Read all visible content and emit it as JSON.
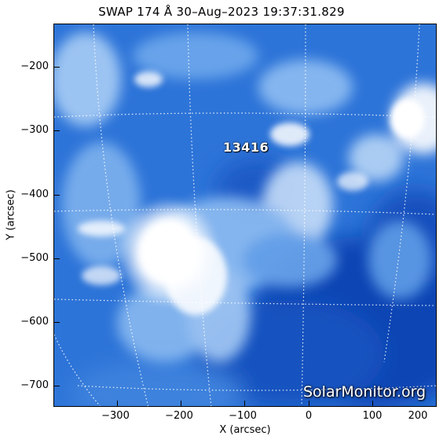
{
  "title": "SWAP 174 Å 30–Aug–2023 19:37:31.829",
  "x_axis": {
    "label": "X (arcsec)",
    "range": [
      -395,
      205
    ],
    "ticks": [
      "−300",
      "−200",
      "−100",
      "0",
      "100",
      "200"
    ],
    "tick_values": [
      -300,
      -200,
      -100,
      0,
      100,
      200
    ]
  },
  "y_axis": {
    "label": "Y (arcsec)",
    "range": [
      -735,
      -135
    ],
    "ticks": [
      "−200",
      "−300",
      "−400",
      "−500",
      "−600",
      "−700"
    ],
    "tick_values": [
      -200,
      -300,
      -400,
      -500,
      -600,
      -700
    ]
  },
  "active_region": {
    "label": "13416",
    "x": -95,
    "y": -330
  },
  "watermark": "SolarMonitor.org",
  "colors": {
    "bright": "#ffffff",
    "mid": "#4d8fe0",
    "dark": "#0a3fae",
    "grid": "#ffffff"
  }
}
